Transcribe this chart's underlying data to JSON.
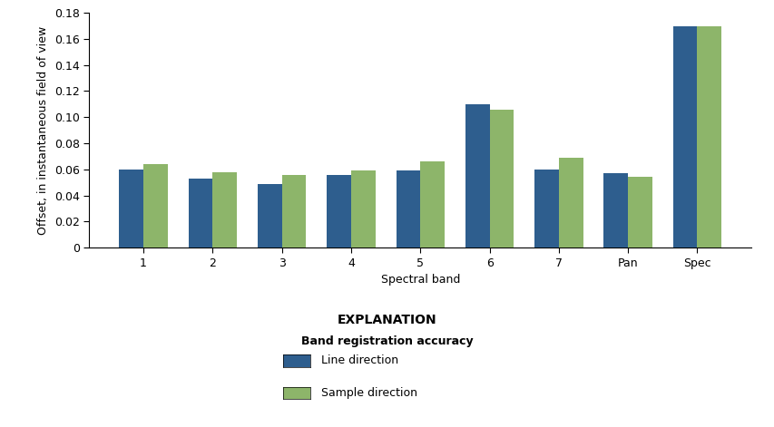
{
  "categories": [
    "1",
    "2",
    "3",
    "4",
    "5",
    "6",
    "7",
    "Pan",
    "Spec"
  ],
  "line_direction": [
    0.06,
    0.053,
    0.049,
    0.056,
    0.059,
    0.11,
    0.06,
    0.057,
    0.17
  ],
  "sample_direction": [
    0.064,
    0.058,
    0.056,
    0.059,
    0.066,
    0.106,
    0.069,
    0.054,
    0.17
  ],
  "line_color": "#2E5E8E",
  "sample_color": "#8DB56A",
  "xlabel": "Spectral band",
  "ylabel": "Offset, in instantaneous field of view",
  "ylim": [
    0,
    0.18
  ],
  "yticks": [
    0,
    0.02,
    0.04,
    0.06,
    0.08,
    0.1,
    0.12,
    0.14,
    0.16,
    0.18
  ],
  "explanation_title": "EXPLANATION",
  "legend_subtitle": "Band registration accuracy",
  "legend_line": "Line direction",
  "legend_sample": "Sample direction",
  "bar_width": 0.35,
  "background_color": "#ffffff",
  "axis_fontsize": 9,
  "legend_fontsize": 9
}
